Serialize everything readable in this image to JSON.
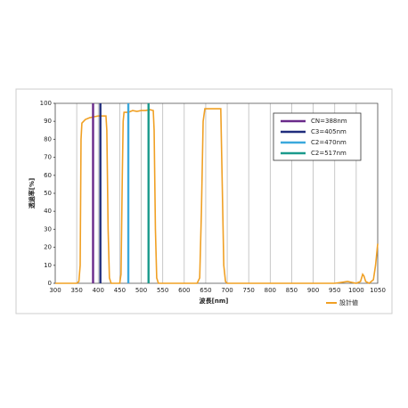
{
  "chart_data": {
    "type": "line",
    "xlabel": "波長[nm]",
    "ylabel": "透過率[%]",
    "xlim": [
      300,
      1050
    ],
    "xticks": [
      300,
      350,
      400,
      450,
      500,
      550,
      600,
      650,
      700,
      750,
      800,
      850,
      900,
      950,
      1000,
      1050
    ],
    "ylim": [
      0,
      100
    ],
    "yticks": [
      0,
      10,
      20,
      30,
      40,
      50,
      60,
      70,
      80,
      90,
      100
    ],
    "grid": "x",
    "legend": "upper right",
    "series": [
      {
        "name": "設計値",
        "color": "#f0a024",
        "x": [
          300,
          350,
          355,
          358,
          360,
          362,
          370,
          380,
          390,
          400,
          410,
          418,
          420,
          423,
          426,
          430,
          440,
          450,
          453,
          456,
          458,
          460,
          470,
          480,
          490,
          500,
          510,
          520,
          528,
          530,
          533,
          536,
          540,
          600,
          630,
          636,
          640,
          644,
          648,
          660,
          670,
          680,
          685,
          688,
          692,
          696,
          700,
          950,
          980,
          990,
          1000,
          1010,
          1015,
          1018,
          1022,
          1030,
          1040,
          1045,
          1050
        ],
        "values": [
          0,
          0,
          1,
          10,
          80,
          89,
          91,
          92,
          92.5,
          93,
          93,
          93,
          85,
          30,
          3,
          0,
          0,
          0,
          5,
          60,
          90,
          95,
          95,
          96,
          95.5,
          96,
          96,
          96.5,
          96,
          85,
          30,
          3,
          0,
          0,
          0,
          3,
          40,
          90,
          97,
          97,
          97,
          97,
          97,
          60,
          10,
          1,
          0,
          0,
          1,
          0.5,
          0,
          1,
          5,
          4,
          1,
          0,
          2,
          10,
          22
        ]
      },
      {
        "name": "CN=388nm",
        "color": "#6a2a8a",
        "x": [
          388,
          388
        ],
        "values": [
          0,
          100
        ]
      },
      {
        "name": "C3=405nm",
        "color": "#1f2c7c",
        "x": [
          405,
          405
        ],
        "values": [
          0,
          100
        ]
      },
      {
        "name": "C2=470nm",
        "color": "#3aa8dc",
        "x": [
          470,
          470
        ],
        "values": [
          0,
          100
        ]
      },
      {
        "name": "C2=517nm",
        "color": "#1a9a8c",
        "x": [
          517,
          517
        ],
        "values": [
          0,
          100
        ]
      }
    ]
  }
}
